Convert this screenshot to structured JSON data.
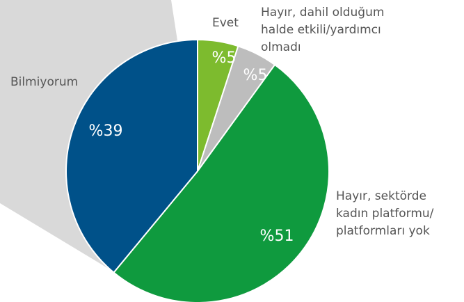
{
  "chart_data": {
    "type": "pie",
    "categories": [
      "Evet",
      "Hayır, dahil olduğum halde etkili/yardımcı olmadı",
      "Hayır, sektörde kadın platformu/ platformları yok",
      "Bilmiyorum"
    ],
    "values": [
      5,
      5,
      51,
      39
    ],
    "value_labels": [
      "%5",
      "%5",
      "%51",
      "%39"
    ],
    "colors": [
      "#7dbb2e",
      "#bdbdbd",
      "#0f9a3e",
      "#005189"
    ]
  }
}
